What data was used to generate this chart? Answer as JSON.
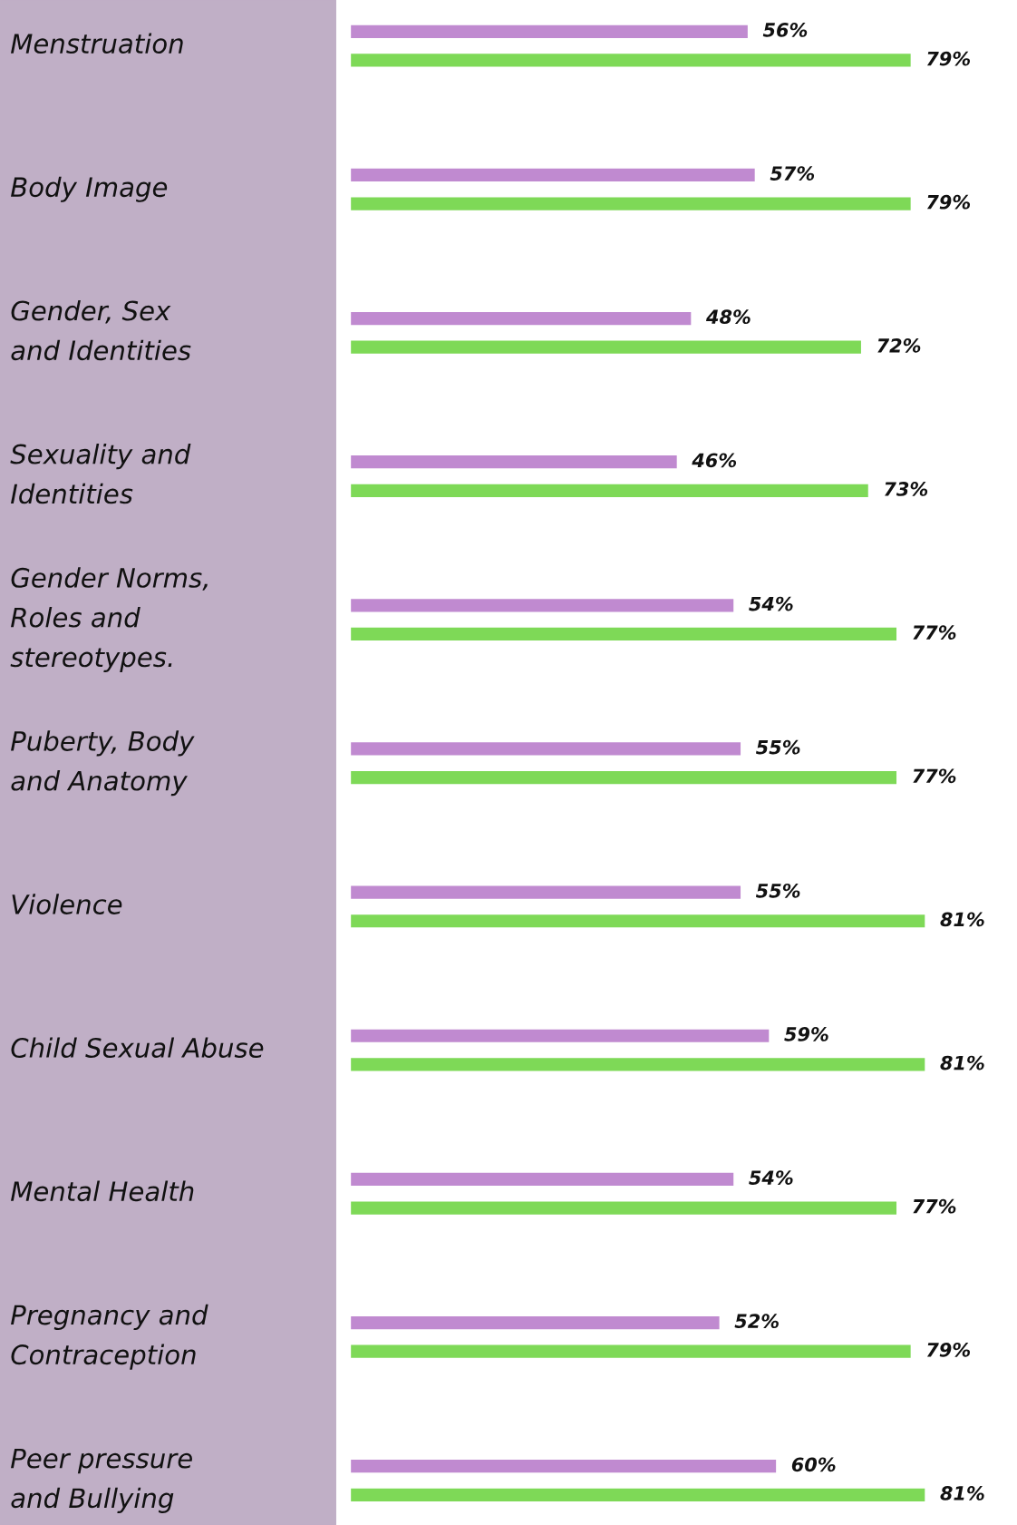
{
  "chart_data": {
    "type": "bar",
    "orientation": "horizontal",
    "data_labels": true,
    "categories": [
      "Menstruation",
      "Body Image",
      "Gender, Sex\nand Identities",
      "Sexuality and\nIdentities",
      "Gender Norms,\nRoles and\nstereotypes.",
      "Puberty, Body\nand Anatomy",
      "Violence",
      "Child Sexual Abuse",
      "Mental Health",
      "Pregnancy and\nContraception",
      "Peer pressure\nand Bullying"
    ],
    "series": [
      {
        "color": "#c08ad0",
        "values": [
          56,
          57,
          48,
          46,
          54,
          55,
          55,
          59,
          54,
          52,
          60
        ],
        "value_labels": [
          "56%",
          "57%",
          "48%",
          "46%",
          "54%",
          "55%",
          "55%",
          "59%",
          "54%",
          "52%",
          "60%"
        ]
      },
      {
        "color": "#7ed957",
        "values": [
          79,
          79,
          72,
          73,
          77,
          77,
          81,
          81,
          77,
          79,
          81
        ],
        "value_labels": [
          "79%",
          "79%",
          "72%",
          "73%",
          "77%",
          "77%",
          "81%",
          "81%",
          "77%",
          "79%",
          "81%"
        ]
      }
    ]
  }
}
